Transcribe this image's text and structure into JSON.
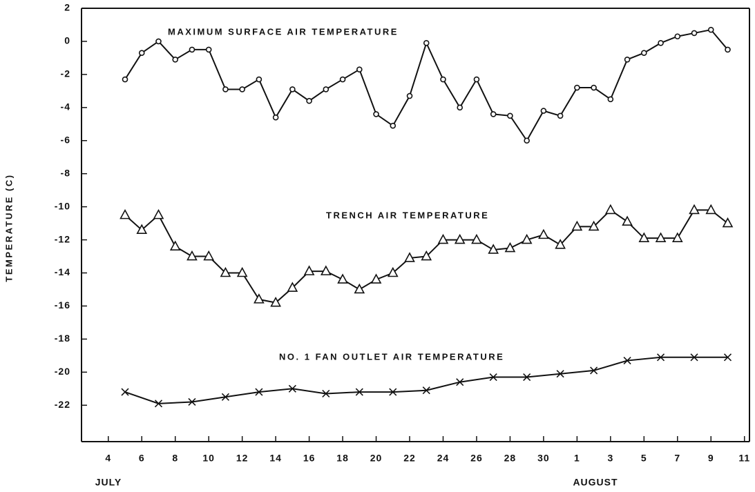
{
  "chart_data": {
    "type": "line",
    "ylabel": "TEMPERATURE (C)",
    "annotations": [
      "JULY",
      "AUGUST"
    ],
    "xlim": [
      2.4,
      42.3
    ],
    "xticks": [
      4,
      6,
      8,
      10,
      12,
      14,
      16,
      18,
      20,
      22,
      24,
      26,
      28,
      30,
      {
        "value": 32,
        "label": "1"
      },
      {
        "value": 34,
        "label": "3"
      },
      {
        "value": 36,
        "label": "5"
      },
      {
        "value": 38,
        "label": "7"
      },
      {
        "value": 40,
        "label": "9"
      },
      {
        "value": 42,
        "label": "11"
      }
    ],
    "ylim": [
      -24.2,
      2
    ],
    "yticks": [
      2,
      0,
      -2,
      -4,
      -6,
      -8,
      -10,
      -12,
      -14,
      -16,
      -18,
      -20,
      -22
    ],
    "series": [
      {
        "name": "MAXIMUM SURFACE AIR TEMPERATURE",
        "color": "#111111",
        "marker": "circle",
        "x": [
          5,
          6,
          7,
          8,
          9,
          10,
          11,
          12,
          13,
          14,
          15,
          16,
          17,
          18,
          19,
          20,
          21,
          22,
          23,
          24,
          25,
          26,
          27,
          28,
          29,
          30,
          31,
          32,
          33,
          34,
          35,
          36,
          37,
          38,
          39,
          40,
          41
        ],
        "values": [
          -2.3,
          -0.7,
          0,
          -1.1,
          -0.5,
          -0.5,
          -2.9,
          -2.9,
          -2.3,
          -4.6,
          -2.9,
          -3.6,
          -2.9,
          -2.3,
          -1.7,
          -4.4,
          -5.1,
          -3.3,
          -0.1,
          -2.3,
          -4.0,
          -2.3,
          -4.4,
          -4.5,
          -6.0,
          -4.2,
          -4.5,
          -2.8,
          -2.8,
          -3.5,
          -1.1,
          -0.7,
          -0.1,
          0.3,
          0.5,
          0.7,
          -0.5
        ]
      },
      {
        "name": "TRENCH AIR TEMPERATURE",
        "color": "#111111",
        "marker": "triangle",
        "x": [
          5,
          6,
          7,
          8,
          9,
          10,
          11,
          12,
          13,
          14,
          15,
          16,
          17,
          18,
          19,
          20,
          21,
          22,
          23,
          24,
          25,
          26,
          27,
          28,
          29,
          30,
          31,
          32,
          33,
          34,
          35,
          36,
          37,
          38,
          39,
          40,
          41
        ],
        "values": [
          -10.5,
          -11.4,
          -10.5,
          -12.4,
          -13.0,
          -13.0,
          -14.0,
          -14.0,
          -15.6,
          -15.8,
          -14.9,
          -13.9,
          -13.9,
          -14.4,
          -15.0,
          -14.4,
          -14.0,
          -13.1,
          -13.0,
          -12.0,
          -12.0,
          -12.0,
          -12.6,
          -12.5,
          -12.0,
          -11.7,
          -12.3,
          -11.2,
          -11.2,
          -10.2,
          -10.9,
          -11.9,
          -11.9,
          -11.9,
          -10.2,
          -10.2,
          -11.0
        ]
      },
      {
        "name": "NO. 1 FAN OUTLET AIR TEMPERATURE",
        "color": "#111111",
        "marker": "x",
        "x": [
          5,
          7,
          9,
          11,
          13,
          15,
          17,
          19,
          21,
          23,
          25,
          27,
          29,
          31,
          33,
          35,
          37,
          39,
          41
        ],
        "values": [
          -21.2,
          -21.9,
          -21.8,
          -21.5,
          -21.2,
          -21.0,
          -21.3,
          -21.2,
          -21.2,
          -21.1,
          -20.6,
          -20.3,
          -20.3,
          -20.1,
          -19.9,
          -19.3,
          -19.1,
          -19.1,
          -19.1
        ]
      }
    ]
  }
}
